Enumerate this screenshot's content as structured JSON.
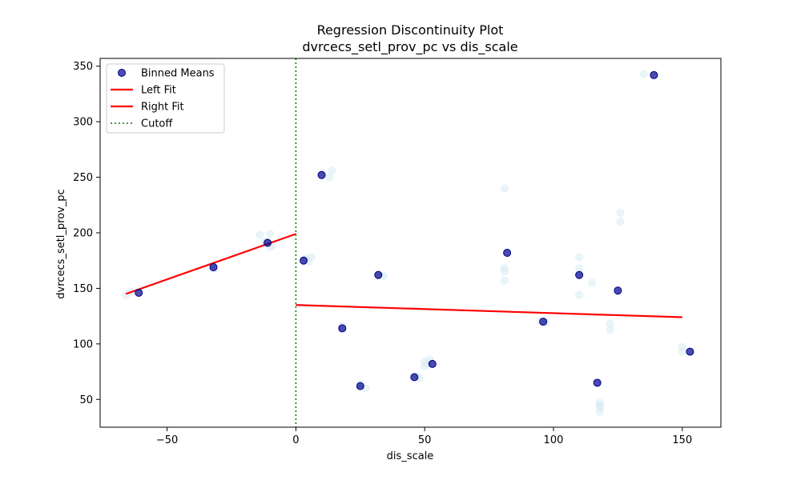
{
  "chart_data": {
    "type": "scatter",
    "title": "Regression Discontinuity Plot",
    "subtitle": "dvrcecs_setl_prov_pc vs dis_scale",
    "xlabel": "dis_scale",
    "ylabel": "dvrcecs_setl_prov_pc",
    "xlim": [
      -76,
      165
    ],
    "ylim": [
      25,
      357
    ],
    "xticks": [
      -50,
      0,
      50,
      100,
      150
    ],
    "yticks": [
      50,
      100,
      150,
      200,
      250,
      300,
      350
    ],
    "grid": false,
    "legend_position": "top-left",
    "cutoff": 0,
    "series": [
      {
        "name": "Binned Means",
        "kind": "scatter",
        "color": "#00008b",
        "points": [
          [
            -61,
            146
          ],
          [
            -32,
            169
          ],
          [
            -11,
            191
          ],
          [
            3,
            175
          ],
          [
            10,
            252
          ],
          [
            18,
            114
          ],
          [
            25,
            62
          ],
          [
            32,
            162
          ],
          [
            46,
            70
          ],
          [
            53,
            82
          ],
          [
            82,
            182
          ],
          [
            96,
            120
          ],
          [
            110,
            162
          ],
          [
            117,
            65
          ],
          [
            125,
            148
          ],
          [
            139,
            342
          ],
          [
            153,
            93
          ]
        ]
      },
      {
        "name": "Raw Data",
        "kind": "scatter",
        "color": "#d8ecf4",
        "points": [
          [
            -66,
            144
          ],
          [
            -64,
            147
          ],
          [
            -32,
            168
          ],
          [
            -14,
            198
          ],
          [
            -12,
            192
          ],
          [
            -10,
            199
          ],
          [
            -10,
            187
          ],
          [
            -9,
            189
          ],
          [
            4,
            177
          ],
          [
            5,
            174
          ],
          [
            6,
            178
          ],
          [
            10,
            254
          ],
          [
            13,
            250
          ],
          [
            14,
            256
          ],
          [
            18,
            116
          ],
          [
            25,
            64
          ],
          [
            27,
            60
          ],
          [
            32,
            163
          ],
          [
            34,
            161
          ],
          [
            47,
            71
          ],
          [
            48,
            69
          ],
          [
            50,
            84
          ],
          [
            50,
            80
          ],
          [
            51,
            82
          ],
          [
            52,
            86
          ],
          [
            81,
            240
          ],
          [
            81,
            168
          ],
          [
            81,
            165
          ],
          [
            81,
            157
          ],
          [
            95,
            120
          ],
          [
            97,
            119
          ],
          [
            110,
            178
          ],
          [
            110,
            168
          ],
          [
            110,
            162
          ],
          [
            110,
            144
          ],
          [
            115,
            155
          ],
          [
            118,
            47
          ],
          [
            118,
            45
          ],
          [
            118,
            43
          ],
          [
            118,
            39
          ],
          [
            122,
            118
          ],
          [
            122,
            113
          ],
          [
            126,
            218
          ],
          [
            126,
            210
          ],
          [
            135,
            343
          ],
          [
            150,
            97
          ],
          [
            150,
            93
          ]
        ]
      },
      {
        "name": "Left Fit",
        "kind": "line",
        "color": "#ff0000",
        "points": [
          [
            -66,
            145
          ],
          [
            0,
            199
          ]
        ]
      },
      {
        "name": "Right Fit",
        "kind": "line",
        "color": "#ff0000",
        "points": [
          [
            0,
            135
          ],
          [
            150,
            124
          ]
        ]
      },
      {
        "name": "Cutoff",
        "kind": "vline",
        "color": "#008000",
        "x": 0
      }
    ],
    "legend": [
      "Binned Means",
      "Left Fit",
      "Right Fit",
      "Cutoff"
    ]
  }
}
